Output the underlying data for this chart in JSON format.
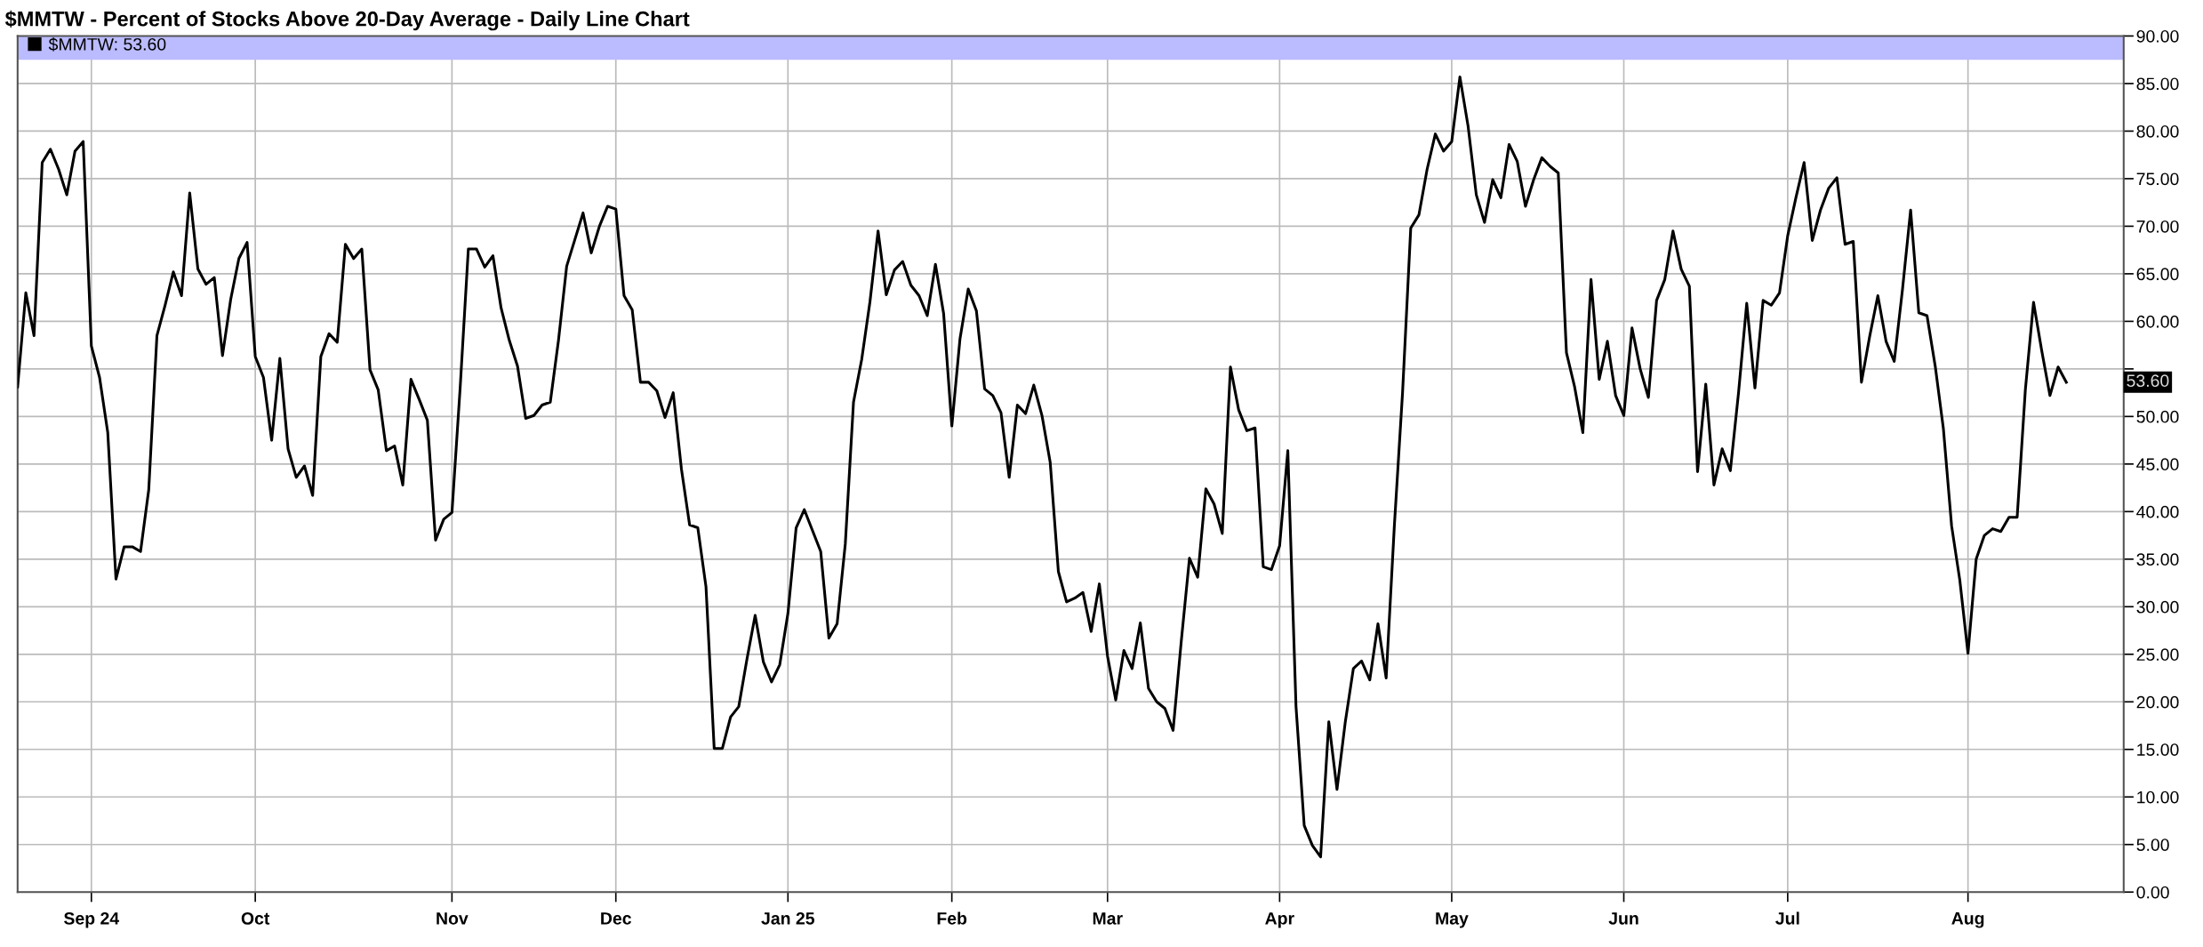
{
  "chart_data": {
    "type": "line",
    "title": "$MMTW - Percent of Stocks Above 20-Day Average - Daily Line Chart",
    "categories": [
      null,
      null,
      null,
      null,
      null,
      null,
      null,
      null,
      null,
      "Sep 24",
      null,
      null,
      null,
      null,
      null,
      null,
      null,
      null,
      null,
      null,
      null,
      null,
      null,
      null,
      null,
      null,
      null,
      null,
      null,
      "Oct",
      null,
      null,
      null,
      null,
      null,
      null,
      null,
      null,
      null,
      null,
      null,
      null,
      null,
      null,
      null,
      null,
      null,
      null,
      null,
      null,
      null,
      null,
      null,
      "Nov",
      null,
      null,
      null,
      null,
      null,
      null,
      null,
      null,
      null,
      null,
      null,
      null,
      null,
      null,
      null,
      null,
      null,
      null,
      null,
      "Dec",
      null,
      null,
      null,
      null,
      null,
      null,
      null,
      null,
      null,
      null,
      null,
      null,
      null,
      null,
      null,
      null,
      null,
      null,
      null,
      null,
      "Jan 25",
      null,
      null,
      null,
      null,
      null,
      null,
      null,
      null,
      null,
      null,
      null,
      null,
      null,
      null,
      null,
      null,
      null,
      null,
      null,
      "Feb",
      null,
      null,
      null,
      null,
      null,
      null,
      null,
      null,
      null,
      null,
      null,
      null,
      null,
      null,
      null,
      null,
      null,
      null,
      "Mar",
      null,
      null,
      null,
      null,
      null,
      null,
      null,
      null,
      null,
      null,
      null,
      null,
      null,
      null,
      null,
      null,
      null,
      null,
      null,
      null,
      "Apr",
      null,
      null,
      null,
      null,
      null,
      null,
      null,
      null,
      null,
      null,
      null,
      null,
      null,
      null,
      null,
      null,
      null,
      null,
      null,
      null,
      "May",
      null,
      null,
      null,
      null,
      null,
      null,
      null,
      null,
      null,
      null,
      null,
      null,
      null,
      null,
      null,
      null,
      null,
      null,
      null,
      null,
      "Jun",
      null,
      null,
      null,
      null,
      null,
      null,
      null,
      null,
      null,
      null,
      null,
      null,
      null,
      null,
      null,
      null,
      null,
      null,
      null,
      "Jul",
      null,
      null,
      null,
      null,
      null,
      null,
      null,
      null,
      null,
      null,
      null,
      null,
      null,
      null,
      null,
      null,
      null,
      null,
      null,
      null,
      null,
      "Aug",
      null,
      null,
      null,
      null,
      null,
      null,
      null,
      null,
      null,
      null,
      null,
      null
    ],
    "series": [
      {
        "name": "$MMTW: 53.60",
        "color": "#000000",
        "values": [
          53.1,
          63.0,
          58.5,
          76.7,
          78.1,
          76.0,
          73.3,
          77.9,
          78.9,
          57.4,
          54.1,
          48.3,
          32.9,
          36.3,
          36.3,
          35.8,
          42.3,
          58.5,
          61.7,
          65.2,
          62.7,
          73.5,
          65.5,
          63.9,
          64.6,
          56.4,
          62.3,
          66.6,
          68.3,
          56.3,
          54.1,
          47.5,
          56.1,
          46.6,
          43.6,
          44.8,
          41.7,
          56.3,
          58.7,
          57.8,
          68.1,
          66.6,
          67.6,
          54.9,
          52.8,
          46.4,
          46.9,
          42.8,
          53.9,
          51.8,
          49.6,
          37.0,
          39.2,
          39.9,
          53.0,
          67.6,
          67.6,
          65.7,
          66.9,
          61.4,
          58.0,
          55.3,
          49.8,
          50.1,
          51.2,
          51.5,
          58.0,
          65.8,
          68.6,
          71.4,
          67.2,
          70.0,
          72.1,
          71.8,
          62.7,
          61.2,
          53.6,
          53.6,
          52.7,
          49.9,
          52.5,
          44.5,
          38.6,
          38.3,
          32.1,
          15.1,
          15.1,
          18.4,
          19.5,
          24.5,
          29.1,
          24.2,
          22.1,
          23.9,
          29.3,
          38.3,
          40.2,
          38.0,
          35.8,
          26.7,
          28.2,
          36.6,
          51.5,
          56.0,
          62.0,
          69.5,
          62.8,
          65.4,
          66.3,
          63.8,
          62.7,
          60.6,
          66.0,
          60.8,
          49.0,
          58.2,
          63.4,
          61.1,
          52.9,
          52.2,
          50.4,
          43.6,
          51.2,
          50.3,
          53.3,
          50.1,
          45.2,
          33.7,
          30.5,
          30.9,
          31.5,
          27.4,
          32.4,
          24.8,
          20.2,
          25.4,
          23.5,
          28.3,
          21.4,
          20.0,
          19.3,
          17.0,
          26.4,
          35.1,
          33.1,
          42.4,
          40.8,
          37.7,
          55.2,
          50.7,
          48.5,
          48.8,
          34.2,
          33.9,
          36.4,
          46.4,
          19.5,
          7.0,
          4.9,
          3.7,
          17.9,
          10.8,
          17.8,
          23.5,
          24.3,
          22.3,
          28.2,
          22.5,
          38.5,
          52.5,
          69.8,
          71.2,
          76.0,
          79.7,
          77.9,
          78.9,
          85.7,
          80.5,
          73.3,
          70.4,
          74.9,
          73.0,
          78.6,
          76.8,
          72.1,
          74.9,
          77.2,
          76.3,
          75.6,
          56.7,
          53.1,
          48.3,
          64.4,
          53.9,
          57.9,
          52.2,
          50.1,
          59.3,
          55.0,
          52.0,
          62.2,
          64.4,
          69.5,
          65.5,
          63.7,
          44.2,
          53.4,
          42.8,
          46.6,
          44.3,
          52.5,
          61.9,
          53.0,
          62.2,
          61.7,
          63.0,
          69.0,
          73.0,
          76.7,
          68.5,
          71.7,
          74.0,
          75.1,
          68.1,
          68.4,
          53.6,
          58.4,
          62.7,
          57.9,
          55.8,
          63.3,
          71.7,
          60.9,
          60.6,
          55.3,
          48.7,
          38.5,
          32.8,
          25.1,
          35.0,
          37.5,
          38.2,
          37.9,
          39.4,
          39.4,
          52.8,
          62.0,
          56.9,
          52.2,
          55.2,
          53.6
        ]
      }
    ],
    "ylim": [
      0,
      90
    ],
    "yticks": [
      {
        "value": 0,
        "label": "0.00"
      },
      {
        "value": 5,
        "label": "5.00"
      },
      {
        "value": 10,
        "label": "10.00"
      },
      {
        "value": 15,
        "label": "15.00"
      },
      {
        "value": 20,
        "label": "20.00"
      },
      {
        "value": 25,
        "label": "25.00"
      },
      {
        "value": 30,
        "label": "30.00"
      },
      {
        "value": 35,
        "label": "35.00"
      },
      {
        "value": 40,
        "label": "40.00"
      },
      {
        "value": 45,
        "label": "45.00"
      },
      {
        "value": 50,
        "label": "50.00"
      },
      {
        "value": 55,
        "label": null
      },
      {
        "value": 60,
        "label": "60.00"
      },
      {
        "value": 65,
        "label": "65.00"
      },
      {
        "value": 70,
        "label": "70.00"
      },
      {
        "value": 75,
        "label": "75.00"
      },
      {
        "value": 80,
        "label": "80.00"
      },
      {
        "value": 85,
        "label": "85.00"
      },
      {
        "value": 90,
        "label": "90.00"
      }
    ],
    "bands": [
      {
        "axis": "y",
        "from": 87.5,
        "to": 90,
        "color": "#bbbbff"
      }
    ],
    "annotations": [
      "53.60"
    ],
    "grid": true,
    "legend": "top left",
    "marker": "none",
    "line_style": "solid"
  }
}
